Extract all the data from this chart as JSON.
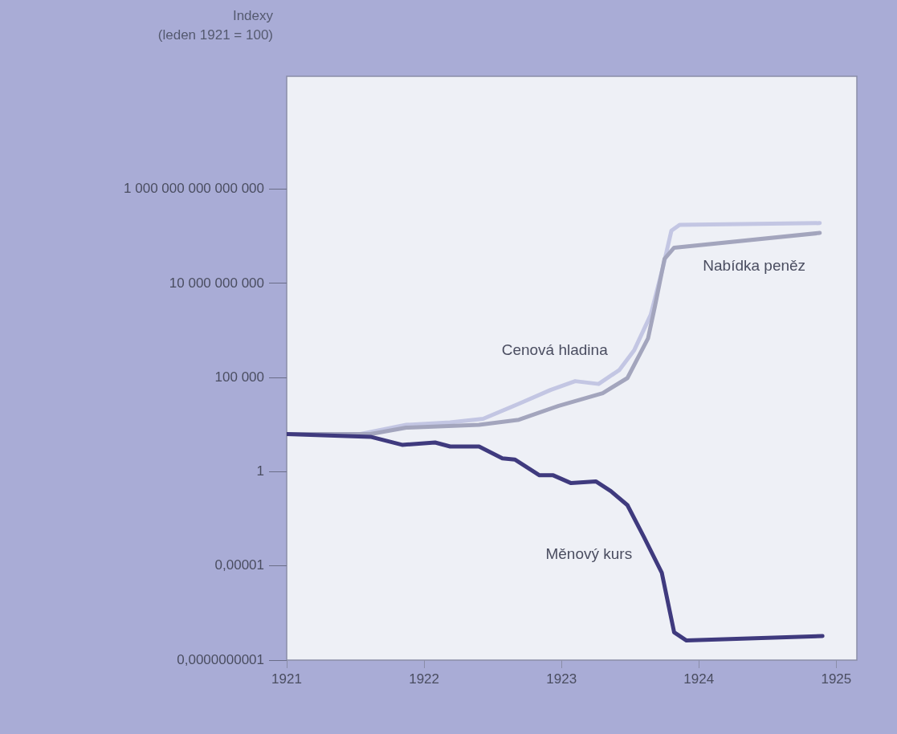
{
  "chart_data": {
    "type": "line",
    "ylabel": "Indexy\n(leden 1921 = 100)",
    "log": "y",
    "legend": false,
    "marker": "none",
    "line_style": "solid",
    "xlim": [
      1921,
      1925.15
    ],
    "xticks": [
      1921,
      1922,
      1923,
      1924,
      1925
    ],
    "ylim": [
      1e-10,
      1e+21
    ],
    "yticks": [
      {
        "value": 1e-10,
        "label": "0,0000000001"
      },
      {
        "value": 1e-05,
        "label": "0,00001"
      },
      {
        "value": 1,
        "label": "1"
      },
      {
        "value": 100000,
        "label": "100 000"
      },
      {
        "value": 10000000000,
        "label": "10 000 000 000"
      },
      {
        "value": 1000000000000000.0,
        "label": "1 000 000 000 000 000"
      }
    ],
    "series": [
      {
        "name": "Cenová hladina",
        "color": "#c3c6e3",
        "x": [
          1921,
          1921.53,
          1921.87,
          1922.19,
          1922.43,
          1922.69,
          1922.92,
          1923.1,
          1923.27,
          1923.42,
          1923.53,
          1923.65,
          1923.74,
          1923.8,
          1923.86,
          1924.88
        ],
        "values": [
          100,
          100,
          310,
          420,
          650,
          4100,
          22000,
          65000,
          46000,
          250000,
          2900000,
          220000000,
          79000000000,
          6300000000000,
          13000000000000,
          16000000000000
        ]
      },
      {
        "name": "Nabídka peněz",
        "color": "#a3a5bd",
        "x": [
          1921,
          1921.61,
          1921.87,
          1922.4,
          1922.69,
          1922.98,
          1923.3,
          1923.48,
          1923.63,
          1923.68,
          1923.75,
          1923.82,
          1924.88
        ],
        "values": [
          100,
          100,
          220,
          310,
          580,
          3200,
          15000,
          95000,
          12000000,
          600000000,
          200000000000,
          790000000000,
          4800000000000
        ]
      },
      {
        "name": "Měnový kurs",
        "color": "#3f3a7e",
        "x": [
          1921,
          1921.61,
          1921.84,
          1922.08,
          1922.19,
          1922.4,
          1922.57,
          1922.66,
          1922.84,
          1922.94,
          1923.07,
          1923.25,
          1923.36,
          1923.48,
          1923.6,
          1923.73,
          1923.82,
          1923.91,
          1924.9
        ],
        "values": [
          100,
          72,
          27,
          36,
          22,
          22,
          5.2,
          4.5,
          0.65,
          0.65,
          0.25,
          0.31,
          0.093,
          0.017,
          0.00035,
          4.4e-06,
          3e-09,
          1.1e-09,
          1.9e-09
        ]
      }
    ]
  }
}
